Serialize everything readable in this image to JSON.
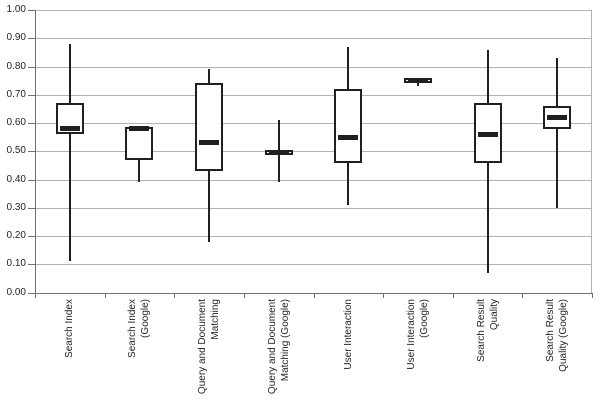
{
  "chart_data": {
    "type": "boxplot",
    "title": "",
    "xlabel": "",
    "ylabel": "",
    "ylim": [
      0,
      1
    ],
    "ytick_step": 0.1,
    "ytick_labels": [
      "1.00",
      "0.90",
      "0.80",
      "0.70",
      "0.60",
      "0.50",
      "0.40",
      "0.30",
      "0.20",
      "0.10",
      "0.00"
    ],
    "grid": "horizontal",
    "legend": "none",
    "categories": [
      "Search Index",
      "Search Index (Google)",
      "Query and Document Matching",
      "Query and Document Matching (Google)",
      "User Interaction",
      "User Interaction (Google)",
      "Search Result Quality",
      "Search Result Quality (Google)"
    ],
    "boxes": [
      {
        "category": "Search Index",
        "label_lines": [
          "Search Index"
        ],
        "min": 0.11,
        "q1": 0.56,
        "median": 0.58,
        "q3": 0.67,
        "max": 0.88
      },
      {
        "category": "Search Index (Google)",
        "label_lines": [
          "Search Index",
          "(Google)"
        ],
        "min": 0.39,
        "q1": 0.47,
        "median": 0.58,
        "q3": 0.585,
        "max": 0.585
      },
      {
        "category": "Query and Document Matching",
        "label_lines": [
          "Query and Document",
          "Matching"
        ],
        "min": 0.18,
        "q1": 0.43,
        "median": 0.53,
        "q3": 0.74,
        "max": 0.79
      },
      {
        "category": "Query and Document Matching (Google)",
        "label_lines": [
          "Query and Document",
          "Matching (Google)"
        ],
        "min": 0.39,
        "q1": 0.485,
        "median": 0.495,
        "q3": 0.505,
        "max": 0.61
      },
      {
        "category": "User Interaction",
        "label_lines": [
          "User Interaction"
        ],
        "min": 0.31,
        "q1": 0.46,
        "median": 0.55,
        "q3": 0.72,
        "max": 0.87
      },
      {
        "category": "User Interaction (Google)",
        "label_lines": [
          "User Interaction",
          "(Google)"
        ],
        "min": 0.73,
        "q1": 0.745,
        "median": 0.75,
        "q3": 0.755,
        "max": 0.76
      },
      {
        "category": "Search Result Quality",
        "label_lines": [
          "Search Result",
          "Quality"
        ],
        "min": 0.07,
        "q1": 0.46,
        "median": 0.56,
        "q3": 0.67,
        "max": 0.86
      },
      {
        "category": "Search Result Quality (Google)",
        "label_lines": [
          "Search Result",
          "Quality (Google)"
        ],
        "min": 0.3,
        "q1": 0.58,
        "median": 0.62,
        "q3": 0.66,
        "max": 0.83
      }
    ],
    "colors": {
      "box_border": "#231f20",
      "median": "#231f20",
      "whisker": "#231f20",
      "gridline": "#b3b3b3",
      "axis": "#707070",
      "text": "#231f20",
      "background": "#ffffff"
    }
  }
}
